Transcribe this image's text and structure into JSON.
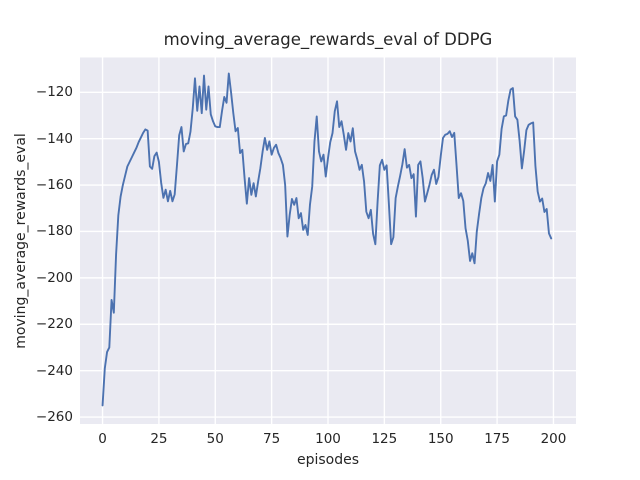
{
  "figure": {
    "title": "moving_average_rewards_eval of DDPG"
  },
  "chart_data": {
    "type": "line",
    "title": "moving_average_rewards_eval of DDPG",
    "xlabel": "episodes",
    "ylabel": "moving_average_rewards_eval",
    "legend": false,
    "grid": true,
    "x_start": 0,
    "x_step": 1,
    "xlim": [
      -10,
      210
    ],
    "ylim": [
      -263,
      -105
    ],
    "xticks": [
      0,
      25,
      50,
      75,
      100,
      125,
      150,
      175,
      200
    ],
    "xtick_labels": [
      "0",
      "25",
      "50",
      "75",
      "100",
      "125",
      "150",
      "175",
      "200"
    ],
    "yticks": [
      -120,
      -140,
      -160,
      -180,
      -200,
      -220,
      -240,
      -260
    ],
    "ytick_labels": [
      "−120",
      "−140",
      "−160",
      "−180",
      "−200",
      "−220",
      "−240",
      "−260"
    ],
    "line_color": "#4c72b0",
    "axes_background": "#eaeaf2",
    "grid_color": "#ffffff",
    "text_color": "#262626",
    "values": [
      -255,
      -239,
      -232,
      -230,
      -209.5,
      -215,
      -190,
      -173,
      -165,
      -160,
      -156,
      -152,
      -150,
      -148,
      -146,
      -144,
      -141.5,
      -139.5,
      -137.5,
      -136,
      -136.5,
      -152,
      -153,
      -147.5,
      -146,
      -150,
      -159,
      -165.5,
      -162,
      -167,
      -162.5,
      -167,
      -164,
      -151.5,
      -138.5,
      -135,
      -145.5,
      -142.3,
      -142,
      -137,
      -127,
      -114,
      -128,
      -117.5,
      -129,
      -112.8,
      -127.5,
      -117.5,
      -129.5,
      -132.5,
      -134.7,
      -135,
      -135,
      -128,
      -122,
      -124.5,
      -111.9,
      -120,
      -129,
      -136.8,
      -135.4,
      -146.2,
      -144.8,
      -157,
      -168,
      -157,
      -164.2,
      -159.2,
      -164.9,
      -158.5,
      -152.7,
      -145.5,
      -139.7,
      -144.8,
      -141.2,
      -146.9,
      -144,
      -142.6,
      -146.2,
      -148.4,
      -151.3,
      -160,
      -182.2,
      -172.9,
      -166,
      -168.5,
      -165.6,
      -174.3,
      -172.1,
      -179.3,
      -177.2,
      -181.5,
      -168.5,
      -160.6,
      -141.2,
      -130.4,
      -145.5,
      -149.8,
      -146.9,
      -156.3,
      -148.4,
      -141.5,
      -137.6,
      -128.2,
      -123.9,
      -135,
      -132.5,
      -138.3,
      -144.8,
      -137.6,
      -141.2,
      -135.5,
      -145.5,
      -149,
      -153.4,
      -151.3,
      -158.5,
      -171.5,
      -174.3,
      -170.7,
      -181,
      -185.5,
      -167.1,
      -151.5,
      -149.1,
      -153.4,
      -151.5,
      -168,
      -185.5,
      -182.5,
      -165.6,
      -160.6,
      -156,
      -151,
      -144.5,
      -152.5,
      -151.3,
      -157,
      -155.3,
      -173.6,
      -151.3,
      -149.8,
      -157,
      -167.1,
      -163.5,
      -159.9,
      -155.6,
      -153.4,
      -159.5,
      -156.5,
      -147.5,
      -139.7,
      -138.3,
      -137.9,
      -136.8,
      -139.3,
      -137.5,
      -151.3,
      -165.6,
      -163.5,
      -166.8,
      -178.6,
      -184,
      -192.7,
      -189.4,
      -193.7,
      -180,
      -172.5,
      -165.6,
      -161.3,
      -159.2,
      -154.8,
      -158.2,
      -151.3,
      -167.1,
      -149.8,
      -146.9,
      -135.8,
      -130.4,
      -130,
      -123.5,
      -118.8,
      -118.2,
      -130.4,
      -131.8,
      -141,
      -152.8,
      -145.2,
      -136.3,
      -134,
      -133.4,
      -133,
      -151.8,
      -162.8,
      -167.1,
      -165.8,
      -171.6,
      -170.3,
      -180.8,
      -183
    ]
  }
}
